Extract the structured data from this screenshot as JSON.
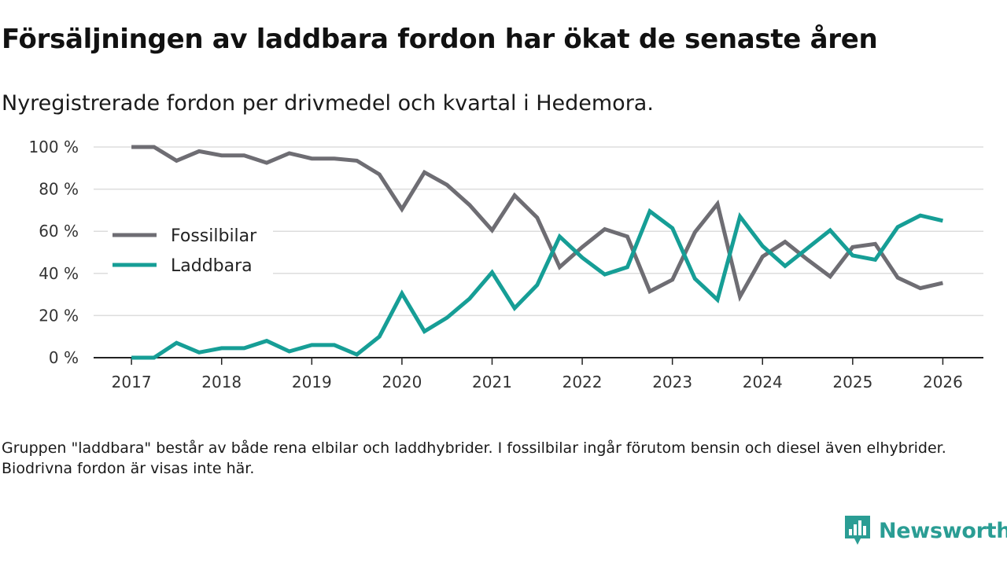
{
  "title": "Försäljningen av laddbara fordon har ökat de senaste åren",
  "subtitle": "Nyregistrerade fordon per drivmedel och kvartal i Hedemora.",
  "note": "Gruppen \"laddbara\" består av både rena elbilar och laddhybrider. I fossilbilar ingår förutom bensin och diesel även elhybrider. Biodrivna fordon är visas inte här.",
  "brand": {
    "name": "Newsworthy",
    "color": "#2a9d94"
  },
  "colors": {
    "fossil": "#6e6d73",
    "laddbara": "#169e96",
    "grid": "#dddddd",
    "axis": "#222222"
  },
  "chart_data": {
    "type": "line",
    "title": "Nyregistrerade fordon per drivmedel och kvartal i Hedemora.",
    "xlabel": "",
    "ylabel": "",
    "x_unit": "kvartal",
    "x": [
      2017.0,
      2017.25,
      2017.5,
      2017.75,
      2018.0,
      2018.25,
      2018.5,
      2018.75,
      2019.0,
      2019.25,
      2019.5,
      2019.75,
      2020.0,
      2020.25,
      2020.5,
      2020.75,
      2021.0,
      2021.25,
      2021.5,
      2021.75,
      2022.0,
      2022.25,
      2022.5,
      2022.75,
      2023.0,
      2023.25,
      2023.5,
      2023.75,
      2024.0,
      2024.25,
      2024.5,
      2024.75,
      2025.0,
      2025.25,
      2025.5,
      2025.75,
      2026.0
    ],
    "xlim": [
      2016.58,
      2026.45
    ],
    "x_ticks": [
      2017,
      2018,
      2019,
      2020,
      2021,
      2022,
      2023,
      2024,
      2025,
      2026
    ],
    "x_tick_labels": [
      "2017",
      "2018",
      "2019",
      "2020",
      "2021",
      "2022",
      "2023",
      "2024",
      "2025",
      "2026"
    ],
    "ylim": [
      0,
      100
    ],
    "y_ticks": [
      0,
      20,
      40,
      60,
      80,
      100
    ],
    "y_tick_labels": [
      "0 %",
      "20 %",
      "40 %",
      "60 %",
      "80 %",
      "100 %"
    ],
    "grid": true,
    "legend_position": "middle-left",
    "series": [
      {
        "name": "Fossilbilar",
        "color_key": "fossil",
        "values": [
          100,
          100,
          93.5,
          98,
          96,
          96,
          92.5,
          97,
          94.5,
          94.5,
          93.5,
          87,
          70.5,
          88,
          82,
          72.5,
          60.5,
          77,
          66.5,
          43,
          52.5,
          61,
          57.5,
          31.5,
          37,
          59.5,
          73,
          29,
          48,
          55,
          46.5,
          38.5,
          52.5,
          54,
          38,
          33,
          35.5
        ]
      },
      {
        "name": "Laddbara",
        "color_key": "laddbara",
        "values": [
          0,
          0,
          7,
          2.5,
          4.5,
          4.5,
          8,
          3,
          6,
          6,
          1.5,
          10,
          30.5,
          12.5,
          19,
          28,
          40.5,
          23.5,
          34.5,
          57.5,
          47.5,
          39.5,
          43,
          69.5,
          61.5,
          37.5,
          27.5,
          67,
          53,
          43.5,
          52,
          60.5,
          48.5,
          46.5,
          62,
          67.5,
          65
        ]
      }
    ]
  }
}
